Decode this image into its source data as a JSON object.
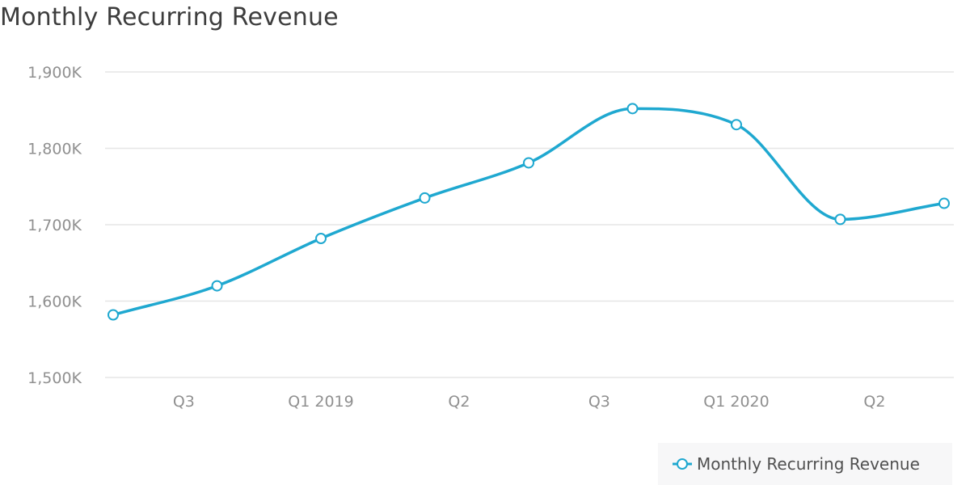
{
  "chart_data": {
    "type": "line",
    "title": "Monthly Recurring Revenue",
    "y_tick_labels": [
      "1,500K",
      "1,600K",
      "1,700K",
      "1,800K",
      "1,900K"
    ],
    "y_ticks": [
      1500,
      1600,
      1700,
      1800,
      1900
    ],
    "ylim": [
      1500,
      1900
    ],
    "x_tick_labels": [
      "Q3",
      "Q1 2019",
      "Q2",
      "Q3",
      "Q1 2020",
      "Q2"
    ],
    "series": [
      {
        "name": "Monthly Recurring Revenue",
        "values": [
          1582,
          1620,
          1682,
          1735,
          1781,
          1852,
          1831,
          1707,
          1728
        ]
      }
    ],
    "grid": true,
    "legend_position": "bottom-right",
    "colors": {
      "line": "#1fa8d0",
      "grid": "#e6e6e6",
      "tick_text": "#909090",
      "marker_fill": "#ffffff"
    }
  }
}
